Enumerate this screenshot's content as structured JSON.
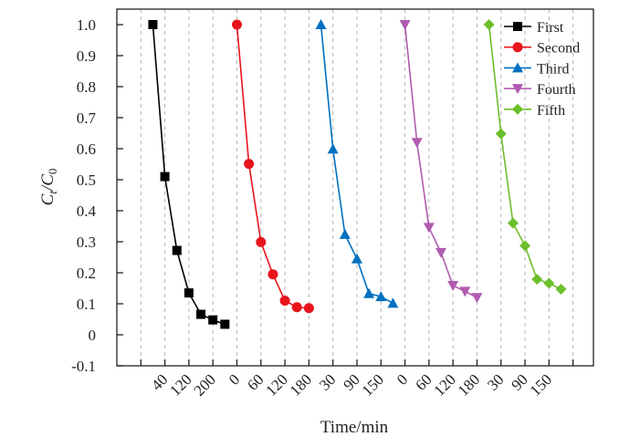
{
  "chart_data": {
    "type": "line",
    "title": "",
    "xlabel": "Time/min",
    "ylabel_main": "C",
    "ylabel_sub1": "t",
    "ylabel_sep": "/C",
    "ylabel_sub2": "0",
    "ylim": [
      -0.1,
      1.05
    ],
    "xlim": [
      -1,
      18.85
    ],
    "grid": "vertical dashed",
    "legend_position": "top-right",
    "yticks": [
      {
        "value": -0.1,
        "label": "-0.1"
      },
      {
        "value": 0,
        "label": "0"
      },
      {
        "value": 0.1,
        "label": "0.1"
      },
      {
        "value": 0.2,
        "label": "0.2"
      },
      {
        "value": 0.3,
        "label": "0.3"
      },
      {
        "value": 0.4,
        "label": "0.4"
      },
      {
        "value": 0.5,
        "label": "0.5"
      },
      {
        "value": 0.6,
        "label": "0.6"
      },
      {
        "value": 0.7,
        "label": "0.7"
      },
      {
        "value": 0.8,
        "label": "0.8"
      },
      {
        "value": 0.9,
        "label": "0.9"
      },
      {
        "value": 1.0,
        "label": "1.0"
      }
    ],
    "xticks": [
      {
        "pos": 0,
        "label": ""
      },
      {
        "pos": 1,
        "label": "40"
      },
      {
        "pos": 2,
        "label": "120"
      },
      {
        "pos": 3,
        "label": "200"
      },
      {
        "pos": 4,
        "label": "0"
      },
      {
        "pos": 5,
        "label": "60"
      },
      {
        "pos": 6,
        "label": "120"
      },
      {
        "pos": 7,
        "label": "180"
      },
      {
        "pos": 8,
        "label": "30"
      },
      {
        "pos": 9,
        "label": "90"
      },
      {
        "pos": 10,
        "label": "150"
      },
      {
        "pos": 11,
        "label": "0"
      },
      {
        "pos": 12,
        "label": "60"
      },
      {
        "pos": 13,
        "label": "120"
      },
      {
        "pos": 14,
        "label": "180"
      },
      {
        "pos": 15,
        "label": "30"
      },
      {
        "pos": 16,
        "label": "90"
      },
      {
        "pos": 17,
        "label": "150"
      },
      {
        "pos": 18,
        "label": ""
      }
    ],
    "series": [
      {
        "name": "First",
        "color": "#000000",
        "marker": "square",
        "x": [
          0.5,
          1,
          1.5,
          2,
          2.5,
          3,
          3.5
        ],
        "y": [
          1.0,
          0.51,
          0.272,
          0.135,
          0.066,
          0.048,
          0.034
        ]
      },
      {
        "name": "Second",
        "color": "#e8141c",
        "marker": "circle",
        "x": [
          4,
          4.5,
          5,
          5.5,
          6,
          6.5,
          7
        ],
        "y": [
          1.0,
          0.551,
          0.299,
          0.195,
          0.11,
          0.089,
          0.086
        ]
      },
      {
        "name": "Third",
        "color": "#0070c0",
        "marker": "triangle-up",
        "x": [
          7.5,
          8,
          8.5,
          9,
          9.5,
          10,
          10.5
        ],
        "y": [
          1.0,
          0.599,
          0.324,
          0.245,
          0.133,
          0.123,
          0.102
        ]
      },
      {
        "name": "Fourth",
        "color": "#b05cb0",
        "marker": "triangle-down",
        "x": [
          11,
          11.5,
          12,
          12.5,
          13,
          13.5,
          14
        ],
        "y": [
          1.0,
          0.62,
          0.346,
          0.265,
          0.159,
          0.14,
          0.12
        ]
      },
      {
        "name": "Fifth",
        "color": "#6cbf2b",
        "marker": "diamond",
        "x": [
          14.5,
          15,
          15.5,
          16,
          16.5,
          17,
          17.5
        ],
        "y": [
          1.0,
          0.648,
          0.36,
          0.287,
          0.179,
          0.166,
          0.147
        ]
      }
    ]
  }
}
